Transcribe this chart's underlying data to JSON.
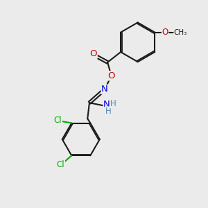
{
  "bg_color": "#ebebeb",
  "bond_color": "#1a1a1a",
  "bond_width": 1.5,
  "atom_colors": {
    "O": "#cc0000",
    "N": "#0000ee",
    "Cl": "#00aa00",
    "C": "#1a1a1a",
    "H": "#5588aa"
  },
  "font_size": 8.5,
  "figsize": [
    3.0,
    3.0
  ],
  "dpi": 100,
  "bg_hex": "#ebebeb"
}
